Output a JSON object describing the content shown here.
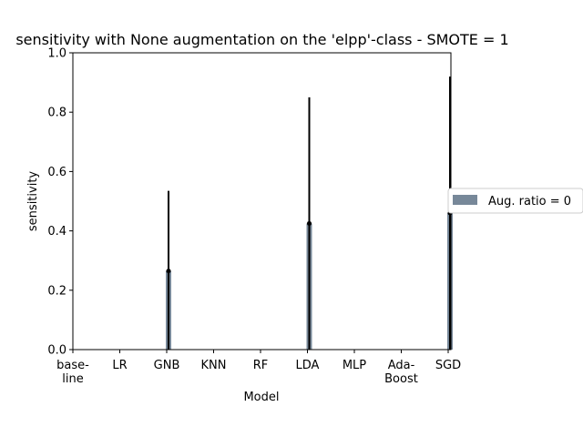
{
  "chart_data": {
    "type": "bar",
    "title": "sensitivity with None augmentation on the 'elpp'-class - SMOTE = 1",
    "xlabel": "Model",
    "ylabel": "sensitivity",
    "ylim": [
      0,
      1.0
    ],
    "yticks": [
      "0.0",
      "0.2",
      "0.4",
      "0.6",
      "0.8",
      "1.0"
    ],
    "categories": [
      [
        "base-",
        "line"
      ],
      [
        "LR"
      ],
      [
        "GNB"
      ],
      [
        "KNN"
      ],
      [
        "RF"
      ],
      [
        "LDA"
      ],
      [
        "MLP"
      ],
      [
        "Ada-",
        "Boost"
      ],
      [
        "SGD"
      ]
    ],
    "series": [
      {
        "name": "Aug. ratio = 0",
        "color": "#778899",
        "values": [
          null,
          null,
          0.265,
          null,
          null,
          0.425,
          null,
          null,
          0.46
        ],
        "err_high": [
          null,
          null,
          0.535,
          null,
          null,
          0.85,
          null,
          null,
          0.92
        ],
        "err_low": [
          null,
          null,
          0.0,
          null,
          null,
          0.0,
          null,
          null,
          0.0
        ]
      }
    ],
    "grid": false,
    "legend_position": "right, outside plot"
  }
}
